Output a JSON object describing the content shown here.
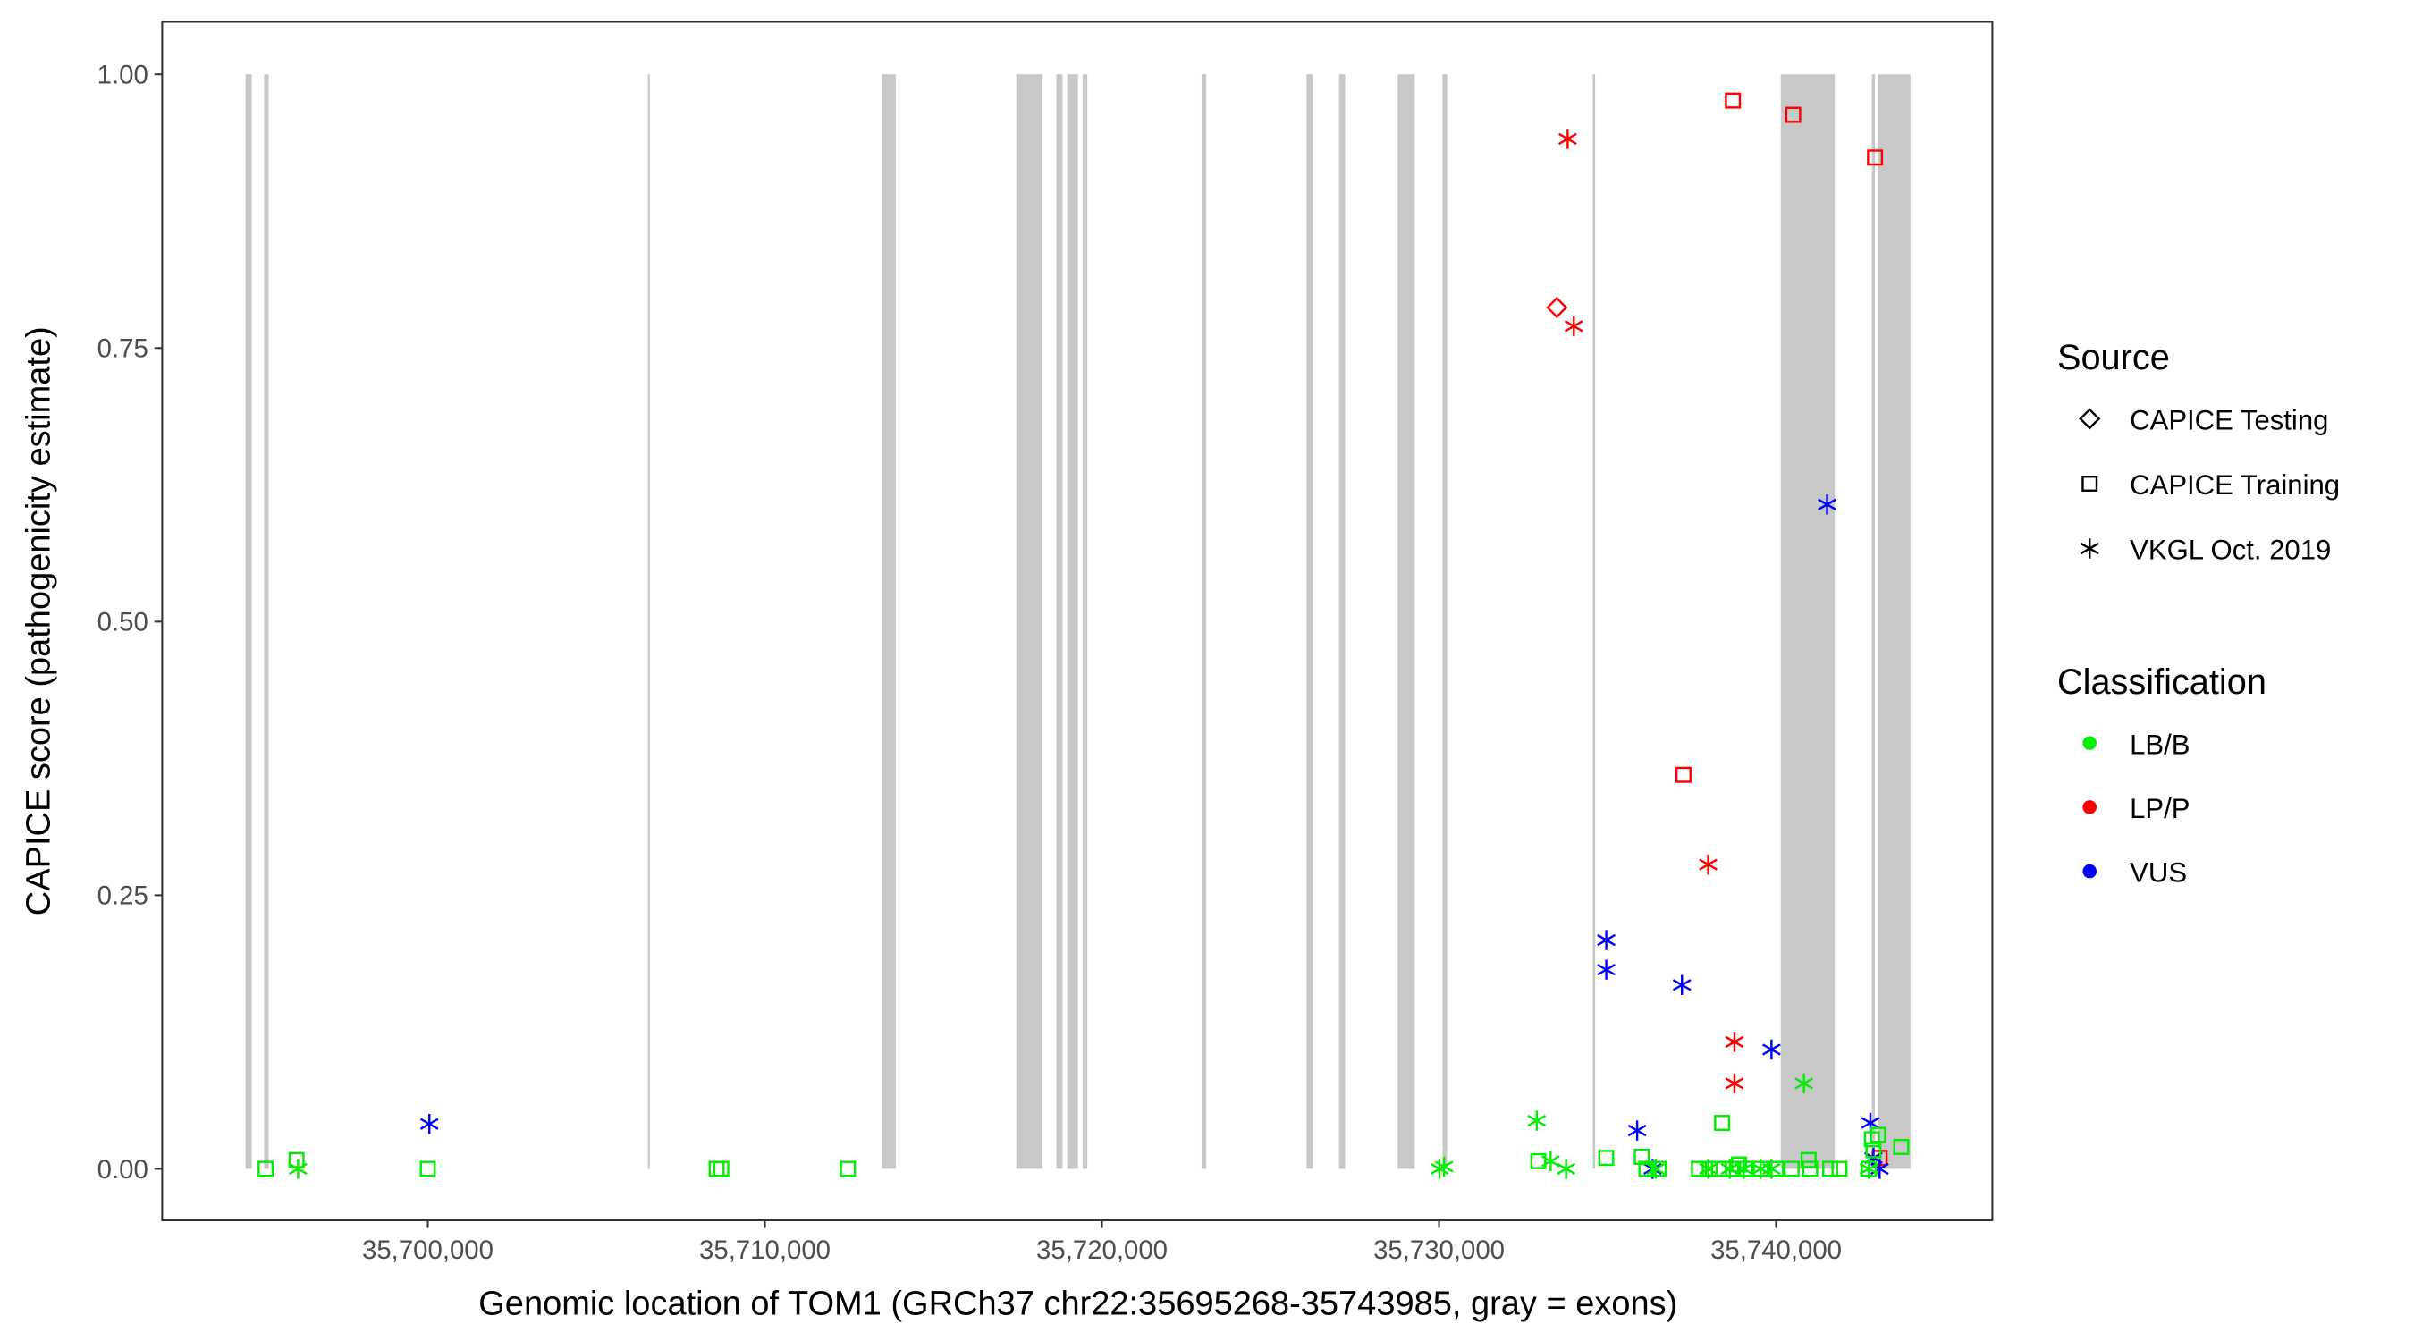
{
  "chart_data": {
    "type": "scatter",
    "xlabel": "Genomic location of TOM1 (GRCh37 chr22:35695268-35743985, gray = exons)",
    "ylabel": "CAPICE score (pathogenicity estimate)",
    "xlim": [
      35692119,
      35746415
    ],
    "ylim": [
      -0.047,
      1.048
    ],
    "x_ticks": [
      35700000,
      35710000,
      35720000,
      35730000,
      35740000
    ],
    "x_tick_labels": [
      "35,700,000",
      "35,710,000",
      "35,720,000",
      "35,730,000",
      "35,740,000"
    ],
    "y_ticks": [
      0,
      0.25,
      0.5,
      0.75,
      1.0
    ],
    "y_tick_labels": [
      "0.00",
      "0.25",
      "0.50",
      "0.75",
      "1.00"
    ],
    "grid": false,
    "exons": [
      [
        35694593,
        35694777
      ],
      [
        35695143,
        35695281
      ],
      [
        35706530,
        35706580
      ],
      [
        35713471,
        35713883
      ],
      [
        35717457,
        35718236
      ],
      [
        35718648,
        35718832
      ],
      [
        35718969,
        35719290
      ],
      [
        35719427,
        35719565
      ],
      [
        35722955,
        35723093
      ],
      [
        35726071,
        35726254
      ],
      [
        35727033,
        35727216
      ],
      [
        35728774,
        35729278
      ],
      [
        35730103,
        35730241
      ],
      [
        35734560,
        35734630
      ],
      [
        35740137,
        35741741
      ],
      [
        35742841,
        35742932
      ],
      [
        35743024,
        35743986
      ]
    ],
    "legend": {
      "placement": "right",
      "source_title": "Source",
      "sources": [
        {
          "key": "T",
          "label": "CAPICE Testing",
          "shape": "diamond"
        },
        {
          "key": "R",
          "label": "CAPICE Training",
          "shape": "square"
        },
        {
          "key": "V",
          "label": "VKGL Oct. 2019",
          "shape": "asterisk"
        }
      ],
      "class_title": "Classification",
      "classes": [
        {
          "key": "LB/B",
          "label": "LB/B",
          "color": "#00ee00"
        },
        {
          "key": "LP/P",
          "label": "LP/P",
          "color": "#ff0000"
        },
        {
          "key": "VUS",
          "label": "VUS",
          "color": "#0000ff"
        }
      ]
    },
    "points": [
      [
        35733494,
        0.787,
        "T",
        "LP/P"
      ],
      [
        35733815,
        0.941,
        "V",
        "LP/P"
      ],
      [
        35733998,
        0.77,
        "V",
        "LP/P"
      ],
      [
        35737985,
        0.278,
        "V",
        "LP/P"
      ],
      [
        35738764,
        0.116,
        "V",
        "LP/P"
      ],
      [
        35738764,
        0.078,
        "V",
        "LP/P"
      ],
      [
        35738718,
        0.976,
        "R",
        "LP/P"
      ],
      [
        35740505,
        0.963,
        "R",
        "LP/P"
      ],
      [
        35742933,
        0.924,
        "R",
        "LP/P"
      ],
      [
        35737252,
        0.36,
        "R",
        "LP/P"
      ],
      [
        35743071,
        0.01,
        "R",
        "LP/P"
      ],
      [
        35700046,
        0.041,
        "V",
        "VUS"
      ],
      [
        35734961,
        0.209,
        "V",
        "VUS"
      ],
      [
        35734961,
        0.182,
        "V",
        "VUS"
      ],
      [
        35737206,
        0.168,
        "V",
        "VUS"
      ],
      [
        35735877,
        0.035,
        "V",
        "VUS"
      ],
      [
        35739863,
        0.109,
        "V",
        "VUS"
      ],
      [
        35741511,
        0.607,
        "V",
        "VUS"
      ],
      [
        35742796,
        0.042,
        "V",
        "VUS"
      ],
      [
        35742888,
        0.01,
        "V",
        "VUS"
      ],
      [
        35743071,
        0.0,
        "V",
        "VUS"
      ],
      [
        35736335,
        0.0,
        "V",
        "VUS"
      ],
      [
        35695189,
        0.0,
        "R",
        "LB/B"
      ],
      [
        35696105,
        0.008,
        "R",
        "LB/B"
      ],
      [
        35700000,
        0.0,
        "R",
        "LB/B"
      ],
      [
        35708568,
        0.0,
        "R",
        "LB/B"
      ],
      [
        35708706,
        0.0,
        "R",
        "LB/B"
      ],
      [
        35712463,
        0.0,
        "R",
        "LB/B"
      ],
      [
        35732945,
        0.007,
        "R",
        "LB/B"
      ],
      [
        35734961,
        0.01,
        "R",
        "LB/B"
      ],
      [
        35736015,
        0.011,
        "R",
        "LB/B"
      ],
      [
        35736152,
        0.0,
        "R",
        "LB/B"
      ],
      [
        35736519,
        0.0,
        "R",
        "LB/B"
      ],
      [
        35737710,
        0.0,
        "R",
        "LB/B"
      ],
      [
        35738031,
        0.0,
        "R",
        "LB/B"
      ],
      [
        35738306,
        0.0,
        "R",
        "LB/B"
      ],
      [
        35738397,
        0.042,
        "R",
        "LB/B"
      ],
      [
        35738718,
        0.0,
        "R",
        "LB/B"
      ],
      [
        35738901,
        0.004,
        "R",
        "LB/B"
      ],
      [
        35739084,
        0.0,
        "R",
        "LB/B"
      ],
      [
        35739543,
        0.0,
        "R",
        "LB/B"
      ],
      [
        35740001,
        0.0,
        "R",
        "LB/B"
      ],
      [
        35740459,
        0.0,
        "R",
        "LB/B"
      ],
      [
        35740963,
        0.008,
        "R",
        "LB/B"
      ],
      [
        35741009,
        0.0,
        "R",
        "LB/B"
      ],
      [
        35741603,
        0.0,
        "R",
        "LB/B"
      ],
      [
        35741879,
        0.0,
        "R",
        "LB/B"
      ],
      [
        35742750,
        0.0,
        "R",
        "LB/B"
      ],
      [
        35742842,
        0.027,
        "R",
        "LB/B"
      ],
      [
        35742888,
        0.017,
        "R",
        "LB/B"
      ],
      [
        35743025,
        0.031,
        "R",
        "LB/B"
      ],
      [
        35743712,
        0.02,
        "R",
        "LB/B"
      ],
      [
        35696151,
        0.0,
        "V",
        "LB/B"
      ],
      [
        35730012,
        0.0,
        "V",
        "LB/B"
      ],
      [
        35730150,
        0.002,
        "V",
        "LB/B"
      ],
      [
        35732899,
        0.044,
        "V",
        "LB/B"
      ],
      [
        35733311,
        0.007,
        "V",
        "LB/B"
      ],
      [
        35733769,
        0.0,
        "V",
        "LB/B"
      ],
      [
        35736427,
        0.0,
        "V",
        "LB/B"
      ],
      [
        35737985,
        0.0,
        "V",
        "LB/B"
      ],
      [
        35738626,
        0.0,
        "V",
        "LB/B"
      ],
      [
        35739039,
        0.0,
        "V",
        "LB/B"
      ],
      [
        35739543,
        0.0,
        "V",
        "LB/B"
      ],
      [
        35739863,
        0.0,
        "V",
        "LB/B"
      ],
      [
        35740825,
        0.078,
        "V",
        "LB/B"
      ],
      [
        35742750,
        0.0,
        "V",
        "LB/B"
      ]
    ]
  }
}
